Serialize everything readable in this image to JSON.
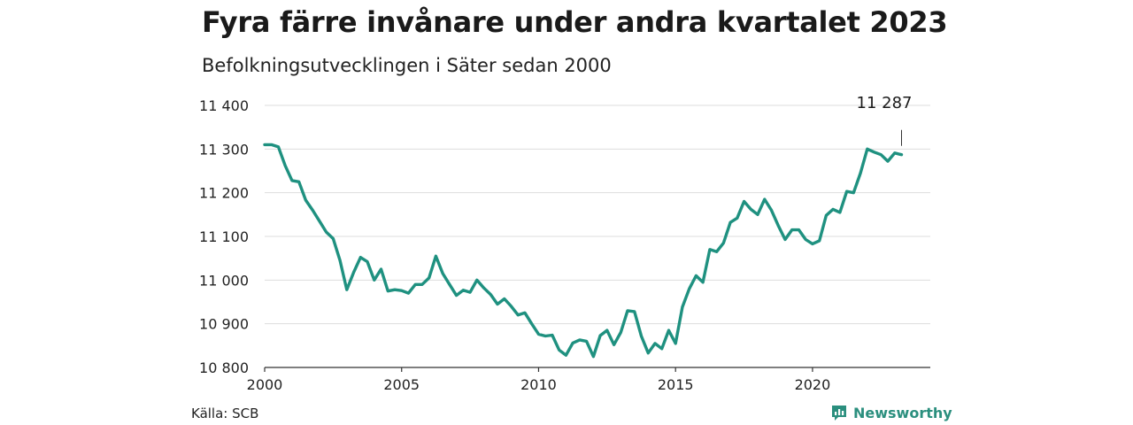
{
  "header": {
    "title": "Fyra färre invånare under andra kvartalet 2023",
    "subtitle": "Befolkningsutvecklingen i Säter sedan 2000"
  },
  "footer": {
    "source": "Källa: SCB",
    "brand": "Newsworthy"
  },
  "colors": {
    "line": "#1f9180",
    "grid": "#dddddd",
    "axis": "#333333",
    "brand": "#2b8f7e"
  },
  "chart_data": {
    "type": "line",
    "title": "Fyra färre invånare under andra kvartalet 2023",
    "subtitle": "Befolkningsutvecklingen i Säter sedan 2000",
    "xlabel": "",
    "ylabel": "",
    "xlim": [
      2000,
      2024.3
    ],
    "ylim": [
      10800,
      11400
    ],
    "x_ticks": [
      2000,
      2005,
      2010,
      2015,
      2020
    ],
    "x_tick_labels": [
      "2000",
      "2005",
      "2010",
      "2015",
      "2020"
    ],
    "y_ticks": [
      10800,
      10900,
      11000,
      11100,
      11200,
      11300,
      11400
    ],
    "y_tick_labels": [
      "10 800",
      "10 900",
      "11 000",
      "11 100",
      "11 200",
      "11 300",
      "11 400"
    ],
    "grid": "horizontal",
    "annotation": {
      "x": 2023.25,
      "y": 11287,
      "label": "11 287"
    },
    "series": [
      {
        "x": [
          2000.0,
          2000.25,
          2000.5,
          2000.75,
          2001.0,
          2001.25,
          2001.5,
          2001.75,
          2002.0,
          2002.25,
          2002.5,
          2002.75,
          2003.0,
          2003.25,
          2003.5,
          2003.75,
          2004.0,
          2004.25,
          2004.5,
          2004.75,
          2005.0,
          2005.25,
          2005.5,
          2005.75,
          2006.0,
          2006.25,
          2006.5,
          2006.75,
          2007.0,
          2007.25,
          2007.5,
          2007.75,
          2008.0,
          2008.25,
          2008.5,
          2008.75,
          2009.0,
          2009.25,
          2009.5,
          2009.75,
          2010.0,
          2010.25,
          2010.5,
          2010.75,
          2011.0,
          2011.25,
          2011.5,
          2011.75,
          2012.0,
          2012.25,
          2012.5,
          2012.75,
          2013.0,
          2013.25,
          2013.5,
          2013.75,
          2014.0,
          2014.25,
          2014.5,
          2014.75,
          2015.0,
          2015.25,
          2015.5,
          2015.75,
          2016.0,
          2016.25,
          2016.5,
          2016.75,
          2017.0,
          2017.25,
          2017.5,
          2017.75,
          2018.0,
          2018.25,
          2018.5,
          2018.75,
          2019.0,
          2019.25,
          2019.5,
          2019.75,
          2020.0,
          2020.25,
          2020.5,
          2020.75,
          2021.0,
          2021.25,
          2021.5,
          2021.75,
          2022.0,
          2022.25,
          2022.5,
          2022.75,
          2023.0,
          2023.25
        ],
        "values": [
          11310,
          11310,
          11305,
          11262,
          11228,
          11225,
          11183,
          11160,
          11135,
          11110,
          11095,
          11045,
          10978,
          11018,
          11052,
          11042,
          11000,
          11025,
          10975,
          10978,
          10976,
          10970,
          10990,
          10990,
          11005,
          11055,
          11015,
          10990,
          10965,
          10977,
          10972,
          11000,
          10982,
          10967,
          10945,
          10957,
          10940,
          10920,
          10925,
          10900,
          10876,
          10872,
          10874,
          10840,
          10828,
          10856,
          10863,
          10860,
          10825,
          10873,
          10885,
          10852,
          10880,
          10930,
          10928,
          10872,
          10833,
          10855,
          10843,
          10885,
          10855,
          10938,
          10980,
          11010,
          10995,
          11070,
          11065,
          11085,
          11132,
          11142,
          11180,
          11162,
          11150,
          11185,
          11160,
          11125,
          11093,
          11115,
          11115,
          11093,
          11083,
          11090,
          11148,
          11162,
          11155,
          11203,
          11200,
          11245,
          11300,
          11293,
          11287,
          11272,
          11291,
          11287
        ]
      }
    ]
  }
}
